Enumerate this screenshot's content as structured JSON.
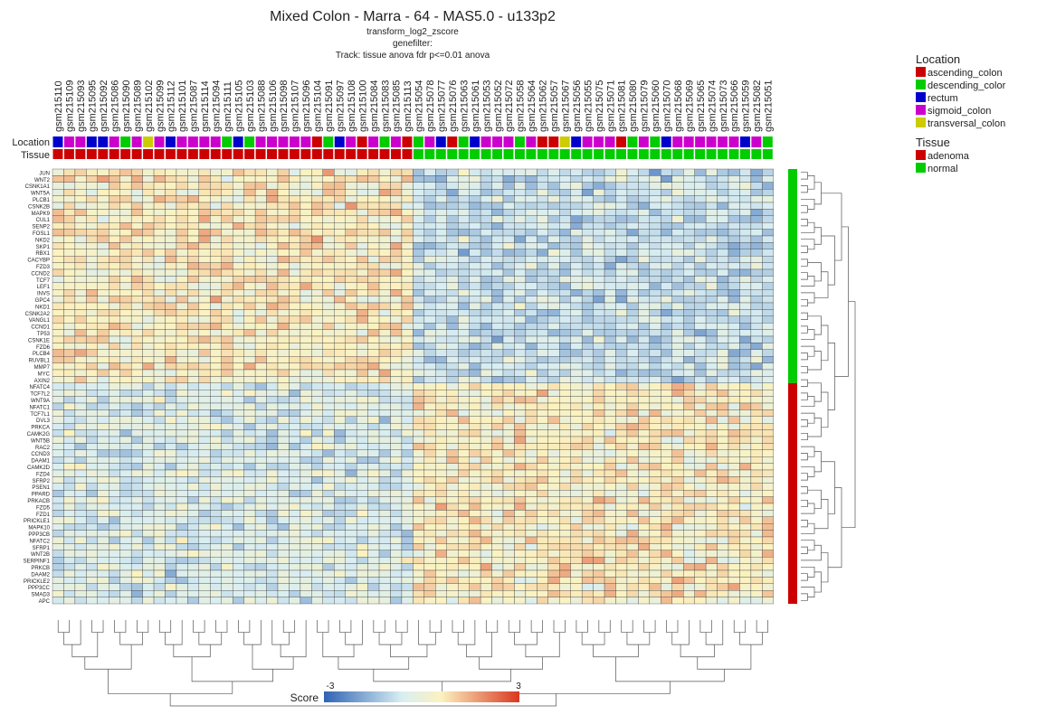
{
  "title": "Mixed Colon - Marra - 64 - MAS5.0 - u133p2",
  "subtitles": [
    "transform_log2_zscore",
    "genefilter:",
    "Track: tissue anova fdr p<=0.01 anova"
  ],
  "track_labels": [
    "Location",
    "Tissue"
  ],
  "legend": {
    "location_title": "Location",
    "location_items": [
      {
        "label": "ascending_colon",
        "color": "#cc0000"
      },
      {
        "label": "descending_color",
        "color": "#00cc00"
      },
      {
        "label": "rectum",
        "color": "#0000cc"
      },
      {
        "label": "sigmoid_colon",
        "color": "#cc00cc"
      },
      {
        "label": "transversal_colon",
        "color": "#cccc00"
      }
    ],
    "tissue_title": "Tissue",
    "tissue_items": [
      {
        "label": "adenoma",
        "color": "#cc0000"
      },
      {
        "label": "normal",
        "color": "#00cc00"
      }
    ]
  },
  "colorbar": {
    "label": "Score",
    "min_label": "-3",
    "max_label": "3",
    "colors": [
      "#2f64b4",
      "#d9eef2",
      "#fbf2c0",
      "#d93820"
    ]
  },
  "chart_data": {
    "type": "heatmap",
    "samples": [
      "gsm215110",
      "gsm215109",
      "gsm215093",
      "gsm215095",
      "gsm215092",
      "gsm215086",
      "gsm215090",
      "gsm215089",
      "gsm215102",
      "gsm215099",
      "gsm215112",
      "gsm215101",
      "gsm215087",
      "gsm215114",
      "gsm215094",
      "gsm215111",
      "gsm215105",
      "gsm215103",
      "gsm215088",
      "gsm215106",
      "gsm215098",
      "gsm215107",
      "gsm215096",
      "gsm215104",
      "gsm215091",
      "gsm215097",
      "gsm215108",
      "gsm215100",
      "gsm215084",
      "gsm215083",
      "gsm215085",
      "gsm215113",
      "gsm215054",
      "gsm215078",
      "gsm215077",
      "gsm215076",
      "gsm215063",
      "gsm215061",
      "gsm215053",
      "gsm215052",
      "gsm215072",
      "gsm215058",
      "gsm215064",
      "gsm215062",
      "gsm215057",
      "gsm215067",
      "gsm215056",
      "gsm215055",
      "gsm215075",
      "gsm215071",
      "gsm215081",
      "gsm215080",
      "gsm215079",
      "gsm215060",
      "gsm215070",
      "gsm215068",
      "gsm215069",
      "gsm215065",
      "gsm215074",
      "gsm215073",
      "gsm215066",
      "gsm215059",
      "gsm215082",
      "gsm215051"
    ],
    "location": [
      "rectum",
      "sigmoid_colon",
      "sigmoid_colon",
      "rectum",
      "rectum",
      "sigmoid_colon",
      "descending_color",
      "sigmoid_colon",
      "transversal_colon",
      "sigmoid_colon",
      "rectum",
      "sigmoid_colon",
      "sigmoid_colon",
      "sigmoid_colon",
      "sigmoid_colon",
      "descending_color",
      "rectum",
      "descending_color",
      "sigmoid_colon",
      "sigmoid_colon",
      "sigmoid_colon",
      "sigmoid_colon",
      "sigmoid_colon",
      "ascending_colon",
      "descending_color",
      "rectum",
      "sigmoid_colon",
      "ascending_colon",
      "sigmoid_colon",
      "descending_color",
      "sigmoid_colon",
      "ascending_colon",
      "descending_color",
      "sigmoid_colon",
      "rectum",
      "ascending_colon",
      "descending_color",
      "rectum",
      "sigmoid_colon",
      "sigmoid_colon",
      "sigmoid_colon",
      "descending_color",
      "sigmoid_colon",
      "ascending_colon",
      "ascending_colon",
      "transversal_colon",
      "rectum",
      "sigmoid_colon",
      "sigmoid_colon",
      "sigmoid_colon",
      "ascending_colon",
      "descending_color",
      "sigmoid_colon",
      "descending_color",
      "rectum",
      "sigmoid_colon",
      "sigmoid_colon",
      "sigmoid_colon",
      "sigmoid_colon",
      "sigmoid_colon",
      "sigmoid_colon",
      "rectum",
      "sigmoid_colon",
      "descending_color"
    ],
    "tissue": [
      "adenoma",
      "adenoma",
      "adenoma",
      "adenoma",
      "adenoma",
      "adenoma",
      "adenoma",
      "adenoma",
      "adenoma",
      "adenoma",
      "adenoma",
      "adenoma",
      "adenoma",
      "adenoma",
      "adenoma",
      "adenoma",
      "adenoma",
      "adenoma",
      "adenoma",
      "adenoma",
      "adenoma",
      "adenoma",
      "adenoma",
      "adenoma",
      "adenoma",
      "adenoma",
      "adenoma",
      "adenoma",
      "adenoma",
      "adenoma",
      "adenoma",
      "adenoma",
      "normal",
      "normal",
      "normal",
      "normal",
      "normal",
      "normal",
      "normal",
      "normal",
      "normal",
      "normal",
      "normal",
      "normal",
      "normal",
      "normal",
      "normal",
      "normal",
      "normal",
      "normal",
      "normal",
      "normal",
      "normal",
      "normal",
      "normal",
      "normal",
      "normal",
      "normal",
      "normal",
      "normal",
      "normal",
      "normal",
      "normal",
      "normal"
    ],
    "genes": [
      "JUN",
      "WNT2",
      "CSNK1A1",
      "WNT5A",
      "PLCB1",
      "CSNK2B",
      "MAPK9",
      "CUL1",
      "SENP2",
      "FOSL1",
      "NKD2",
      "SKP1",
      "RBX1",
      "CACYBP",
      "FZD3",
      "CCND2",
      "TCF7",
      "LEF1",
      "INVS",
      "GPC4",
      "NKD1",
      "CSNK2A2",
      "VANGL1",
      "CCND1",
      "TP53",
      "CSNK1E",
      "FZD6",
      "PLCB4",
      "RUVBL1",
      "MMP7",
      "MYC",
      "AXIN2",
      "NFATC4",
      "TCF7L2",
      "WNT9A",
      "NFATC1",
      "TCF7L1",
      "DVL3",
      "PRKCA",
      "CAMK2G",
      "WNT5B",
      "RAC2",
      "CCND3",
      "DAAM1",
      "CAMK2D",
      "FZD4",
      "SFRP2",
      "PSEN1",
      "PPARD",
      "PRKACB",
      "FZD5",
      "FZD1",
      "PRICKLE1",
      "MAPK10",
      "PPP3CB",
      "NFATC2",
      "SFRP1",
      "WNT2B",
      "SERPINF1",
      "PRKCB",
      "DAAM2",
      "PRICKLE2",
      "PPP3CC",
      "SMAD3",
      "APC"
    ],
    "gene_cluster": [
      "normal-high",
      "normal-high",
      "normal-high",
      "normal-high",
      "normal-high",
      "normal-high",
      "normal-high",
      "normal-high",
      "normal-high",
      "normal-high",
      "normal-high",
      "normal-high",
      "normal-high",
      "normal-high",
      "normal-high",
      "normal-high",
      "normal-high",
      "normal-high",
      "normal-high",
      "normal-high",
      "normal-high",
      "normal-high",
      "normal-high",
      "normal-high",
      "normal-high",
      "normal-high",
      "normal-high",
      "normal-high",
      "normal-high",
      "normal-high",
      "normal-high",
      "normal-high",
      "adenoma-high",
      "adenoma-high",
      "adenoma-high",
      "adenoma-high",
      "adenoma-high",
      "adenoma-high",
      "adenoma-high",
      "adenoma-high",
      "adenoma-high",
      "adenoma-high",
      "adenoma-high",
      "adenoma-high",
      "adenoma-high",
      "adenoma-high",
      "adenoma-high",
      "adenoma-high",
      "adenoma-high",
      "adenoma-high",
      "adenoma-high",
      "adenoma-high",
      "adenoma-high",
      "adenoma-high",
      "adenoma-high",
      "adenoma-high",
      "adenoma-high",
      "adenoma-high",
      "adenoma-high",
      "adenoma-high",
      "adenoma-high",
      "adenoma-high",
      "adenoma-high",
      "adenoma-high",
      "adenoma-high"
    ],
    "value_range": [
      -3,
      3
    ]
  }
}
